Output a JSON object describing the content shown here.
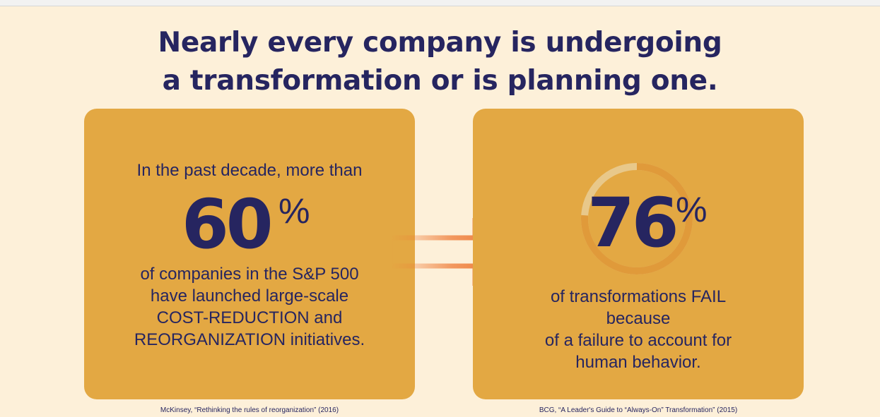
{
  "title": {
    "line1": "Nearly every company is undergoing",
    "line2": "a transformation or is planning one."
  },
  "left_card": {
    "intro": "In the past decade, more than",
    "value": "60",
    "unit": "%",
    "desc": [
      "of companies in the S&P 500",
      "have launched large-scale",
      "COST-REDUCTION and",
      "REORGANIZATION initiatives."
    ],
    "source": "McKinsey, “Rethinking the rules of reorganization” (2016)"
  },
  "right_card": {
    "value": "76",
    "unit": "%",
    "ring_fraction": 0.76,
    "desc": [
      "of transformations FAIL",
      "because",
      "of a failure to account for",
      "human behavior."
    ],
    "source": "BCG, “A Leader's Guide to “Always-On” Transformation” (2015)"
  },
  "colors": {
    "background": "#fdf0d9",
    "card": "#e3a843",
    "text": "#262560",
    "arrow": "#ee7a35"
  },
  "icons": {
    "arrow": "right-arrow-icon",
    "ring": "progress-ring-icon"
  }
}
